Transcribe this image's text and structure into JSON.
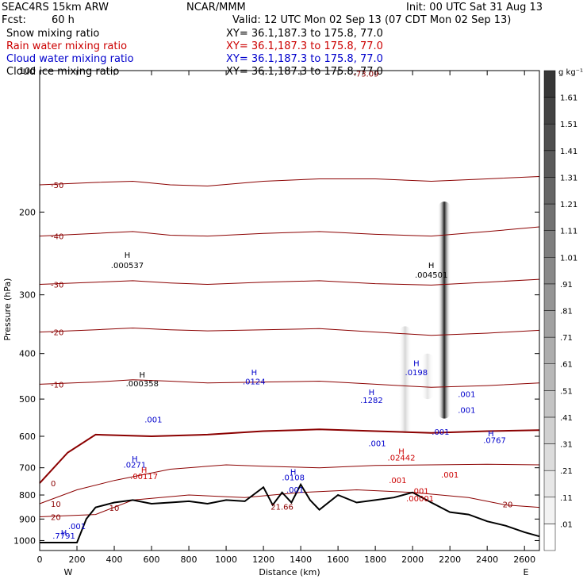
{
  "header": {
    "model": "SEAC4RS 15km ARW",
    "org": "NCAR/MMM",
    "init": "Init: 00 UTC Sat 31 Aug 13",
    "fcst_label": "Fcst:",
    "fcst_value": "60 h",
    "valid": "Valid: 12 UTC Mon 02 Sep 13 (07 CDT Mon 02 Sep 13)"
  },
  "legend": [
    {
      "name": "Snow mixing ratio",
      "xy": "XY=  36.1,187.3 to 175.8, 77.0",
      "color": "#000000"
    },
    {
      "name": "Rain water mixing ratio",
      "xy": "XY=  36.1,187.3 to 175.8, 77.0",
      "color": "#cc0000"
    },
    {
      "name": "Cloud water mixing ratio",
      "xy": "XY=  36.1,187.3 to 175.8, 77.0",
      "color": "#0000cc"
    },
    {
      "name": "Cloud ice mixing ratio",
      "xy": "XY=  36.1,187.3 to 175.8, 77.0",
      "color": "#000000"
    }
  ],
  "chart_data": {
    "type": "heatmap",
    "xlabel": "Distance (km)",
    "ylabel": "Pressure (hPa)",
    "xlim": [
      0,
      2680
    ],
    "ylim": [
      1050,
      100
    ],
    "x_ticks": [
      0,
      200,
      400,
      600,
      800,
      1000,
      1200,
      1400,
      1600,
      1800,
      2000,
      2200,
      2400,
      2600
    ],
    "y_ticks": [
      100,
      200,
      300,
      400,
      500,
      600,
      700,
      800,
      900,
      1000
    ],
    "y_scale": "log",
    "ends": {
      "left": "W",
      "right": "E"
    },
    "colorbar": {
      "unit": "g kg⁻¹",
      "labels": [
        ".01",
        ".11",
        ".21",
        ".31",
        ".41",
        ".51",
        ".61",
        ".71",
        ".81",
        ".91",
        "1.01",
        "1.11",
        "1.21",
        "1.31",
        "1.41",
        "1.51",
        "1.61"
      ]
    },
    "temperature_contours": [
      {
        "label": "-50",
        "pressure": [
          175,
          173,
          172,
          175,
          176,
          172,
          170,
          170,
          172,
          170,
          168
        ],
        "x": [
          0,
          300,
          500,
          700,
          900,
          1200,
          1500,
          1800,
          2100,
          2400,
          2680
        ],
        "color": "#8b0000"
      },
      {
        "label": "-40",
        "pressure": [
          225,
          222,
          220,
          224,
          225,
          222,
          220,
          223,
          225,
          220,
          215
        ],
        "x": [
          0,
          300,
          500,
          700,
          900,
          1200,
          1500,
          1800,
          2100,
          2400,
          2680
        ],
        "color": "#8b0000"
      },
      {
        "label": "-30",
        "pressure": [
          285,
          282,
          280,
          283,
          285,
          282,
          280,
          284,
          286,
          282,
          278
        ],
        "x": [
          0,
          300,
          500,
          700,
          900,
          1200,
          1500,
          1800,
          2100,
          2400,
          2680
        ],
        "color": "#8b0000"
      },
      {
        "label": "-20",
        "pressure": [
          360,
          356,
          353,
          356,
          358,
          356,
          354,
          360,
          366,
          362,
          357
        ],
        "x": [
          0,
          300,
          500,
          700,
          900,
          1200,
          1500,
          1800,
          2100,
          2400,
          2680
        ],
        "color": "#8b0000"
      },
      {
        "label": "-10",
        "pressure": [
          465,
          460,
          455,
          458,
          462,
          460,
          458,
          465,
          472,
          468,
          462
        ],
        "x": [
          0,
          300,
          500,
          700,
          900,
          1200,
          1500,
          1800,
          2100,
          2400,
          2680
        ],
        "color": "#8b0000"
      },
      {
        "label": "0",
        "pressure": [
          755,
          650,
          595,
          600,
          595,
          585,
          580,
          585,
          590,
          585,
          582
        ],
        "x": [
          0,
          150,
          300,
          600,
          900,
          1200,
          1500,
          1800,
          2100,
          2400,
          2680
        ],
        "color": "#8b0000"
      },
      {
        "label": "10",
        "pressure": [
          835,
          780,
          745,
          705,
          690,
          695,
          700,
          692,
          690,
          688,
          690
        ],
        "x": [
          0,
          200,
          400,
          700,
          1000,
          1200,
          1500,
          1800,
          2100,
          2400,
          2680
        ],
        "color": "#8b0000"
      },
      {
        "label": "20",
        "pressure": [
          890,
          880,
          820,
          800,
          810,
          790,
          780,
          790,
          810,
          840,
          850
        ],
        "x": [
          0,
          300,
          500,
          800,
          1100,
          1400,
          1700,
          2000,
          2300,
          2500,
          2680
        ],
        "color": "#8b0000"
      }
    ],
    "terrain": {
      "x": [
        0,
        200,
        250,
        300,
        400,
        500,
        600,
        700,
        800,
        900,
        1000,
        1100,
        1200,
        1250,
        1300,
        1350,
        1400,
        1450,
        1500,
        1600,
        1700,
        1800,
        1900,
        2000,
        2100,
        2200,
        2300,
        2400,
        2500,
        2600,
        2680
      ],
      "pressure": [
        1010,
        1010,
        900,
        850,
        830,
        820,
        835,
        830,
        825,
        835,
        820,
        825,
        770,
        840,
        790,
        830,
        760,
        820,
        860,
        800,
        830,
        820,
        810,
        790,
        830,
        870,
        880,
        910,
        930,
        960,
        980
      ]
    },
    "annotations": [
      {
        "text": "H",
        "x": 470,
        "p": 250,
        "color": "#000000"
      },
      {
        "text": ".000537",
        "x": 470,
        "p": 263,
        "color": "#000000"
      },
      {
        "text": "H",
        "x": 2100,
        "p": 263,
        "color": "#000000"
      },
      {
        "text": ".004501",
        "x": 2100,
        "p": 276,
        "color": "#000000"
      },
      {
        "text": "-73.09",
        "x": 1750,
        "p": 103,
        "color": "#8b0000"
      },
      {
        "text": "H",
        "x": 550,
        "p": 450,
        "color": "#000000"
      },
      {
        "text": ".000358",
        "x": 550,
        "p": 470,
        "color": "#000000"
      },
      {
        "text": ".001",
        "x": 610,
        "p": 560,
        "color": "#0000cc"
      },
      {
        "text": "H",
        "x": 1150,
        "p": 445,
        "color": "#0000cc"
      },
      {
        "text": ".0124",
        "x": 1150,
        "p": 465,
        "color": "#0000cc"
      },
      {
        "text": "H",
        "x": 1780,
        "p": 490,
        "color": "#0000cc"
      },
      {
        "text": ".1282",
        "x": 1780,
        "p": 510,
        "color": "#0000cc"
      },
      {
        "text": ".001",
        "x": 1810,
        "p": 630,
        "color": "#0000cc"
      },
      {
        "text": "H",
        "x": 2020,
        "p": 425,
        "color": "#0000cc"
      },
      {
        "text": ".0198",
        "x": 2020,
        "p": 445,
        "color": "#0000cc"
      },
      {
        "text": ".001",
        "x": 2290,
        "p": 495,
        "color": "#0000cc"
      },
      {
        "text": ".001",
        "x": 2290,
        "p": 535,
        "color": "#0000cc"
      },
      {
        "text": ".001",
        "x": 2150,
        "p": 595,
        "color": "#0000cc"
      },
      {
        "text": "H",
        "x": 2420,
        "p": 600,
        "color": "#0000cc"
      },
      {
        "text": ".0767",
        "x": 2440,
        "p": 620,
        "color": "#0000cc"
      },
      {
        "text": "H",
        "x": 510,
        "p": 680,
        "color": "#0000cc"
      },
      {
        "text": ".0271",
        "x": 510,
        "p": 700,
        "color": "#0000cc"
      },
      {
        "text": "H",
        "x": 560,
        "p": 718,
        "color": "#cc0000"
      },
      {
        "text": ".00117",
        "x": 560,
        "p": 740,
        "color": "#cc0000"
      },
      {
        "text": "H",
        "x": 1360,
        "p": 725,
        "color": "#0000cc"
      },
      {
        "text": ".0108",
        "x": 1360,
        "p": 745,
        "color": "#0000cc"
      },
      {
        "text": ".001",
        "x": 1370,
        "p": 790,
        "color": "#0000cc"
      },
      {
        "text": "H",
        "x": 1940,
        "p": 655,
        "color": "#cc0000"
      },
      {
        "text": ".02442",
        "x": 1940,
        "p": 675,
        "color": "#cc0000"
      },
      {
        "text": ".001",
        "x": 1920,
        "p": 755,
        "color": "#cc0000"
      },
      {
        "text": ".001",
        "x": 2040,
        "p": 795,
        "color": "#cc0000"
      },
      {
        "text": ".001",
        "x": 2200,
        "p": 735,
        "color": "#cc0000"
      },
      {
        "text": ".00001",
        "x": 2040,
        "p": 825,
        "color": "#cc0000"
      },
      {
        "text": "21.66",
        "x": 1300,
        "p": 860,
        "color": "#8b0000"
      },
      {
        "text": "10",
        "x": 400,
        "p": 865,
        "color": "#8b0000"
      },
      {
        "text": "20",
        "x": 2510,
        "p": 850,
        "color": "#8b0000"
      },
      {
        "text": "H",
        "x": 130,
        "p": 975,
        "color": "#0000cc"
      },
      {
        "text": ".7791",
        "x": 130,
        "p": 990,
        "color": "#0000cc"
      },
      {
        "text": ".001",
        "x": 200,
        "p": 945,
        "color": "#0000cc"
      }
    ],
    "shaded_snow_max": [
      {
        "x": 2170,
        "p_top": 190,
        "p_bottom": 550,
        "value": 1.6
      },
      {
        "x": 1960,
        "p_top": 350,
        "p_bottom": 590,
        "value": 0.3
      },
      {
        "x": 2080,
        "p_top": 400,
        "p_bottom": 500,
        "value": 0.2
      }
    ]
  }
}
